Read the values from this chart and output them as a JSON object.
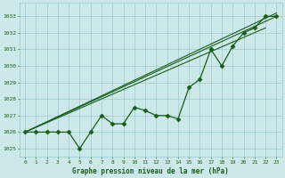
{
  "title": "Graphe pression niveau de la mer (hPa)",
  "x": [
    0,
    1,
    2,
    3,
    4,
    5,
    6,
    7,
    8,
    9,
    10,
    11,
    12,
    13,
    14,
    15,
    16,
    17,
    18,
    19,
    20,
    21,
    22,
    23
  ],
  "y_main": [
    1026,
    1026,
    1026,
    1026,
    1026,
    1025,
    1026,
    1027,
    1026.5,
    1026.5,
    1027.5,
    1027.3,
    1027,
    1027,
    1026.8,
    1028.7,
    1029.2,
    1031.0,
    1030.0,
    1031.2,
    1032.0,
    1032.3,
    1033.0,
    1033.0
  ],
  "diag_lines": [
    [
      [
        0,
        23
      ],
      [
        1026,
        1033.0
      ]
    ],
    [
      [
        0,
        23
      ],
      [
        1026,
        1033.2
      ]
    ],
    [
      [
        0,
        22
      ],
      [
        1026,
        1032.3
      ]
    ]
  ],
  "ylim": [
    1024.5,
    1033.8
  ],
  "xlim": [
    -0.5,
    23.5
  ],
  "bg_color": "#cce8e8",
  "grid_color": "#99cccc",
  "line_color": "#1a5c1a",
  "title_color": "#1a5c1a",
  "tick_color": "#1a5c1a",
  "yticks": [
    1025,
    1026,
    1027,
    1028,
    1029,
    1030,
    1031,
    1032,
    1033
  ],
  "xticks": [
    0,
    1,
    2,
    3,
    4,
    5,
    6,
    7,
    8,
    9,
    10,
    11,
    12,
    13,
    14,
    15,
    16,
    17,
    18,
    19,
    20,
    21,
    22,
    23
  ]
}
